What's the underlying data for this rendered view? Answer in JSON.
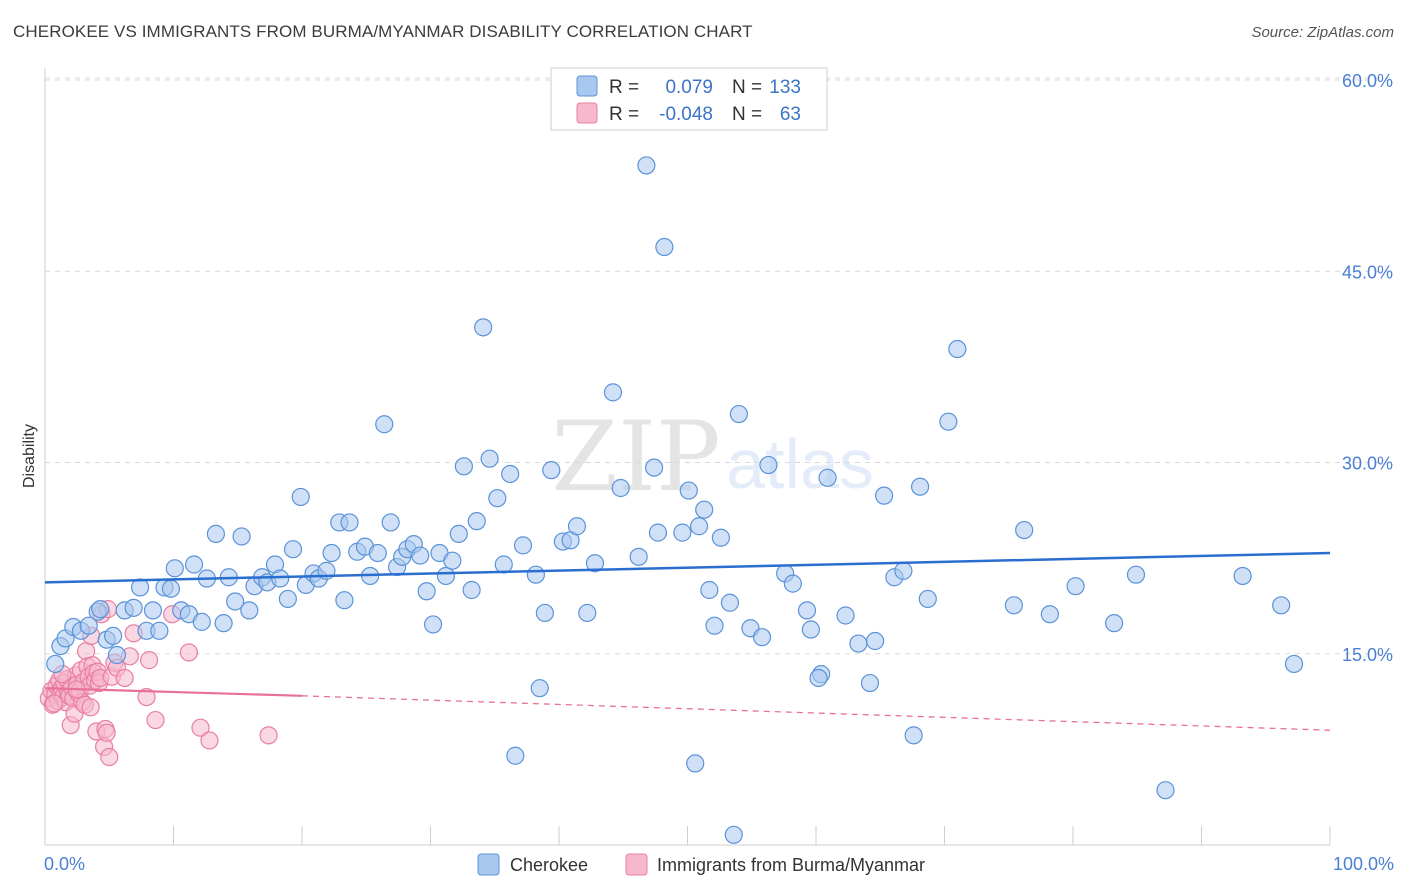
{
  "title": "CHEROKEE VS IMMIGRANTS FROM BURMA/MYANMAR DISABILITY CORRELATION CHART",
  "source": "Source: ZipAtlas.com",
  "watermark": {
    "zip": "ZIP",
    "atlas": "atlas"
  },
  "colors": {
    "blue_fill": "#a9c8f0",
    "blue_stroke": "#5b93d8",
    "blue_line": "#2a6fcf",
    "pink_fill": "#f6b8cc",
    "pink_stroke": "#e87fa2",
    "pink_line": "#e8709a",
    "grid": "#d9d9d9",
    "axis_text": "#4a7fd4"
  },
  "legend": {
    "rows": [
      {
        "r_label": "R =",
        "r_value": "0.079",
        "n_label": "N =",
        "n_value": "133"
      },
      {
        "r_label": "R =",
        "r_value": "-0.048",
        "n_label": "N =",
        "n_value": "63"
      }
    ]
  },
  "chart_data": {
    "type": "scatter",
    "title": "CHEROKEE VS IMMIGRANTS FROM BURMA/MYANMAR DISABILITY CORRELATION CHART",
    "xlabel": "",
    "ylabel": "Disability",
    "xlim": [
      0,
      100
    ],
    "ylim": [
      0,
      60
    ],
    "x_tick_labels": [
      "0.0%",
      "100.0%"
    ],
    "y_ticks": [
      15,
      30,
      45,
      60
    ],
    "y_tick_labels": [
      "15.0%",
      "30.0%",
      "45.0%",
      "60.0%"
    ],
    "grid": true,
    "series": [
      {
        "name": "Cherokee",
        "r": 0.079,
        "n": 133,
        "trend": {
          "x": [
            0,
            100
          ],
          "y": [
            20.6,
            22.9
          ]
        },
        "points": [
          [
            0.8,
            14.2
          ],
          [
            1.2,
            15.6
          ],
          [
            1.6,
            16.2
          ],
          [
            2.2,
            17.1
          ],
          [
            2.8,
            16.8
          ],
          [
            3.4,
            17.2
          ],
          [
            4.1,
            18.3
          ],
          [
            4.3,
            18.5
          ],
          [
            4.8,
            16.1
          ],
          [
            5.3,
            16.4
          ],
          [
            5.6,
            14.9
          ],
          [
            6.2,
            18.4
          ],
          [
            6.9,
            18.6
          ],
          [
            7.4,
            20.2
          ],
          [
            7.9,
            16.8
          ],
          [
            8.4,
            18.4
          ],
          [
            8.9,
            16.8
          ],
          [
            9.3,
            20.2
          ],
          [
            9.8,
            20.1
          ],
          [
            10.1,
            21.7
          ],
          [
            10.6,
            18.4
          ],
          [
            11.2,
            18.1
          ],
          [
            11.6,
            22.0
          ],
          [
            12.2,
            17.5
          ],
          [
            12.6,
            20.9
          ],
          [
            13.3,
            24.4
          ],
          [
            13.9,
            17.4
          ],
          [
            14.3,
            21.0
          ],
          [
            14.8,
            19.1
          ],
          [
            15.3,
            24.2
          ],
          [
            15.9,
            18.4
          ],
          [
            16.3,
            20.3
          ],
          [
            16.9,
            21.0
          ],
          [
            17.3,
            20.6
          ],
          [
            17.9,
            22.0
          ],
          [
            18.3,
            20.9
          ],
          [
            18.9,
            19.3
          ],
          [
            19.3,
            23.2
          ],
          [
            19.9,
            27.3
          ],
          [
            20.3,
            20.4
          ],
          [
            20.9,
            21.3
          ],
          [
            21.3,
            20.9
          ],
          [
            21.9,
            21.5
          ],
          [
            22.3,
            22.9
          ],
          [
            22.9,
            25.3
          ],
          [
            23.3,
            19.2
          ],
          [
            23.7,
            25.3
          ],
          [
            24.3,
            23.0
          ],
          [
            24.9,
            23.4
          ],
          [
            25.3,
            21.1
          ],
          [
            25.9,
            22.9
          ],
          [
            26.4,
            33.0
          ],
          [
            26.9,
            25.3
          ],
          [
            27.4,
            21.8
          ],
          [
            27.8,
            22.6
          ],
          [
            28.2,
            23.2
          ],
          [
            28.7,
            23.6
          ],
          [
            29.2,
            22.7
          ],
          [
            29.7,
            19.9
          ],
          [
            30.2,
            17.3
          ],
          [
            30.7,
            22.9
          ],
          [
            31.2,
            21.1
          ],
          [
            31.7,
            22.3
          ],
          [
            32.2,
            24.4
          ],
          [
            32.6,
            29.7
          ],
          [
            33.2,
            20.0
          ],
          [
            33.6,
            25.4
          ],
          [
            34.1,
            40.6
          ],
          [
            34.6,
            30.3
          ],
          [
            35.2,
            27.2
          ],
          [
            35.7,
            22.0
          ],
          [
            36.2,
            29.1
          ],
          [
            37.2,
            23.5
          ],
          [
            38.2,
            21.2
          ],
          [
            38.5,
            12.3
          ],
          [
            38.9,
            18.2
          ],
          [
            39.4,
            29.4
          ],
          [
            40.3,
            23.8
          ],
          [
            40.9,
            23.9
          ],
          [
            41.4,
            25.0
          ],
          [
            42.2,
            18.2
          ],
          [
            42.8,
            22.1
          ],
          [
            44.2,
            35.5
          ],
          [
            44.8,
            28.0
          ],
          [
            46.2,
            22.6
          ],
          [
            46.8,
            53.3
          ],
          [
            47.4,
            29.6
          ],
          [
            47.7,
            24.5
          ],
          [
            48.2,
            46.9
          ],
          [
            49.6,
            24.5
          ],
          [
            50.1,
            27.8
          ],
          [
            50.9,
            25.0
          ],
          [
            51.3,
            26.3
          ],
          [
            51.7,
            20.0
          ],
          [
            52.1,
            17.2
          ],
          [
            52.6,
            24.1
          ],
          [
            53.3,
            19.0
          ],
          [
            54.0,
            33.8
          ],
          [
            54.9,
            17.0
          ],
          [
            55.8,
            16.3
          ],
          [
            56.3,
            29.8
          ],
          [
            57.6,
            21.3
          ],
          [
            58.2,
            20.5
          ],
          [
            59.3,
            18.4
          ],
          [
            59.6,
            16.9
          ],
          [
            60.4,
            13.4
          ],
          [
            60.9,
            28.8
          ],
          [
            62.3,
            18.0
          ],
          [
            63.3,
            15.8
          ],
          [
            64.2,
            12.7
          ],
          [
            64.6,
            16.0
          ],
          [
            65.3,
            27.4
          ],
          [
            66.1,
            21.0
          ],
          [
            66.8,
            21.5
          ],
          [
            67.6,
            8.6
          ],
          [
            68.1,
            28.1
          ],
          [
            68.7,
            19.3
          ],
          [
            70.3,
            33.2
          ],
          [
            71.0,
            38.9
          ],
          [
            75.4,
            18.8
          ],
          [
            76.2,
            24.7
          ],
          [
            78.2,
            18.1
          ],
          [
            80.2,
            20.3
          ],
          [
            83.2,
            17.4
          ],
          [
            84.9,
            21.2
          ],
          [
            87.2,
            4.3
          ],
          [
            93.2,
            21.1
          ],
          [
            96.2,
            18.8
          ],
          [
            97.2,
            14.2
          ],
          [
            36.6,
            7.0
          ],
          [
            50.6,
            6.4
          ],
          [
            53.6,
            0.8
          ],
          [
            60.2,
            13.1
          ]
        ]
      },
      {
        "name": "Immigrants from Burma/Myanmar",
        "r": -0.048,
        "n": 63,
        "trend_solid": {
          "x": [
            0,
            20
          ],
          "y": [
            12.3,
            11.7
          ]
        },
        "trend_dashed": {
          "x": [
            20,
            100
          ],
          "y": [
            11.7,
            9.0
          ]
        },
        "points": [
          [
            0.3,
            11.5
          ],
          [
            0.5,
            12.1
          ],
          [
            0.6,
            11.0
          ],
          [
            0.8,
            11.8
          ],
          [
            0.9,
            12.5
          ],
          [
            1.0,
            11.3
          ],
          [
            1.1,
            12.9
          ],
          [
            1.2,
            11.9
          ],
          [
            1.3,
            12.3
          ],
          [
            1.4,
            11.6
          ],
          [
            1.5,
            12.7
          ],
          [
            1.6,
            11.2
          ],
          [
            1.7,
            13.0
          ],
          [
            1.8,
            12.0
          ],
          [
            1.9,
            11.7
          ],
          [
            2.0,
            9.4
          ],
          [
            2.1,
            12.4
          ],
          [
            2.2,
            11.5
          ],
          [
            2.3,
            10.3
          ],
          [
            2.4,
            13.3
          ],
          [
            2.5,
            12.6
          ],
          [
            2.6,
            11.9
          ],
          [
            2.7,
            12.1
          ],
          [
            2.8,
            13.7
          ],
          [
            2.9,
            11.2
          ],
          [
            3.0,
            12.8
          ],
          [
            3.1,
            11.0
          ],
          [
            3.2,
            15.2
          ],
          [
            3.3,
            14.0
          ],
          [
            3.4,
            13.2
          ],
          [
            3.5,
            12.5
          ],
          [
            3.6,
            16.4
          ],
          [
            3.7,
            14.1
          ],
          [
            3.8,
            13.5
          ],
          [
            3.9,
            12.9
          ],
          [
            4.0,
            8.9
          ],
          [
            4.1,
            13.6
          ],
          [
            4.2,
            12.7
          ],
          [
            4.3,
            13.1
          ],
          [
            4.4,
            18.1
          ],
          [
            4.6,
            7.7
          ],
          [
            4.7,
            9.1
          ],
          [
            4.8,
            8.8
          ],
          [
            4.9,
            18.5
          ],
          [
            5.0,
            6.9
          ],
          [
            5.2,
            13.2
          ],
          [
            5.4,
            14.3
          ],
          [
            5.6,
            13.9
          ],
          [
            6.2,
            13.1
          ],
          [
            6.6,
            14.8
          ],
          [
            6.9,
            16.6
          ],
          [
            7.9,
            11.6
          ],
          [
            8.1,
            14.5
          ],
          [
            8.6,
            9.8
          ],
          [
            9.9,
            18.1
          ],
          [
            11.2,
            15.1
          ],
          [
            12.1,
            9.2
          ],
          [
            12.8,
            8.2
          ],
          [
            17.4,
            8.6
          ],
          [
            0.7,
            11.1
          ],
          [
            1.35,
            13.4
          ],
          [
            2.45,
            12.2
          ],
          [
            3.55,
            10.8
          ]
        ]
      }
    ]
  },
  "bottom_legend": [
    {
      "label": "Cherokee"
    },
    {
      "label": "Immigrants from Burma/Myanmar"
    }
  ]
}
